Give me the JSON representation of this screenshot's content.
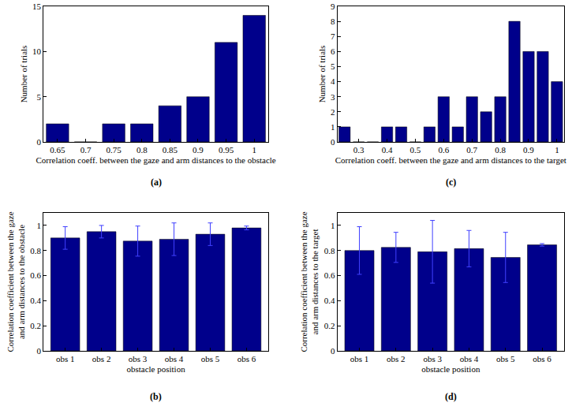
{
  "chart_data": [
    {
      "type": "bar",
      "panel_label": "(a)",
      "xlabel": [
        "Correlation coeff. between the gaze and arm distances to the obstacle"
      ],
      "ylabel": [
        "Number of trials"
      ],
      "x": [
        0.65,
        0.7,
        0.75,
        0.8,
        0.85,
        0.9,
        0.95,
        1
      ],
      "values": [
        2,
        0,
        2,
        2,
        4,
        5,
        11,
        14
      ],
      "color": "#00008b",
      "xlim": [
        0.625,
        1.025
      ],
      "xticks": [
        0.65,
        0.7,
        0.75,
        0.8,
        0.85,
        0.9,
        0.95,
        1
      ],
      "ylim": [
        0,
        15
      ],
      "yticks": [
        0,
        5,
        10,
        15
      ],
      "grid": false
    },
    {
      "type": "bar",
      "panel_label": "(b)",
      "xlabel": [
        "obstacle position"
      ],
      "ylabel": [
        "Correlation coefficient between the gaze",
        "and arm distances to the obstacle"
      ],
      "categories": [
        "obs 1",
        "obs 2",
        "obs 3",
        "obs 4",
        "obs 5",
        "obs 6"
      ],
      "values": [
        0.9,
        0.95,
        0.875,
        0.89,
        0.93,
        0.98
      ],
      "errors": [
        0.09,
        0.05,
        0.12,
        0.13,
        0.09,
        0.015
      ],
      "color": "#00008b",
      "error_color": "#4040ff",
      "ylim": [
        0,
        1.1
      ],
      "yticks": [
        0,
        0.2,
        0.4,
        0.6,
        0.8,
        1
      ],
      "grid": false
    },
    {
      "type": "bar",
      "panel_label": "(c)",
      "xlabel": [
        "Correlation coeff. between the gaze and arm distances to the target"
      ],
      "ylabel": [
        "Number of trials"
      ],
      "x": [
        0.25,
        0.3,
        0.35,
        0.4,
        0.45,
        0.5,
        0.55,
        0.6,
        0.65,
        0.7,
        0.75,
        0.8,
        0.85,
        0.9,
        0.95,
        1
      ],
      "values": [
        1,
        0,
        0,
        1,
        1,
        0,
        1,
        3,
        1,
        3,
        2,
        3,
        8,
        6,
        6,
        4
      ],
      "color": "#00008b",
      "xlim": [
        0.225,
        1.025
      ],
      "xticks": [
        0.3,
        0.4,
        0.5,
        0.6,
        0.7,
        0.8,
        0.9,
        1
      ],
      "ylim": [
        0,
        9
      ],
      "yticks": [
        0,
        1,
        2,
        3,
        4,
        5,
        6,
        7,
        8,
        9
      ],
      "grid": false
    },
    {
      "type": "bar",
      "panel_label": "(d)",
      "xlabel": [
        "obstacle position"
      ],
      "ylabel": [
        "Correlation coefficient between the gaze",
        "and arm distances to the target"
      ],
      "categories": [
        "obs 1",
        "obs 2",
        "obs 3",
        "obs 4",
        "obs 5",
        "obs 6"
      ],
      "values": [
        0.8,
        0.825,
        0.79,
        0.815,
        0.745,
        0.845
      ],
      "errors": [
        0.19,
        0.12,
        0.25,
        0.145,
        0.2,
        0.01
      ],
      "color": "#00008b",
      "error_color": "#4040ff",
      "ylim": [
        0,
        1.1
      ],
      "yticks": [
        0,
        0.2,
        0.4,
        0.6,
        0.8,
        1
      ],
      "grid": false
    }
  ]
}
